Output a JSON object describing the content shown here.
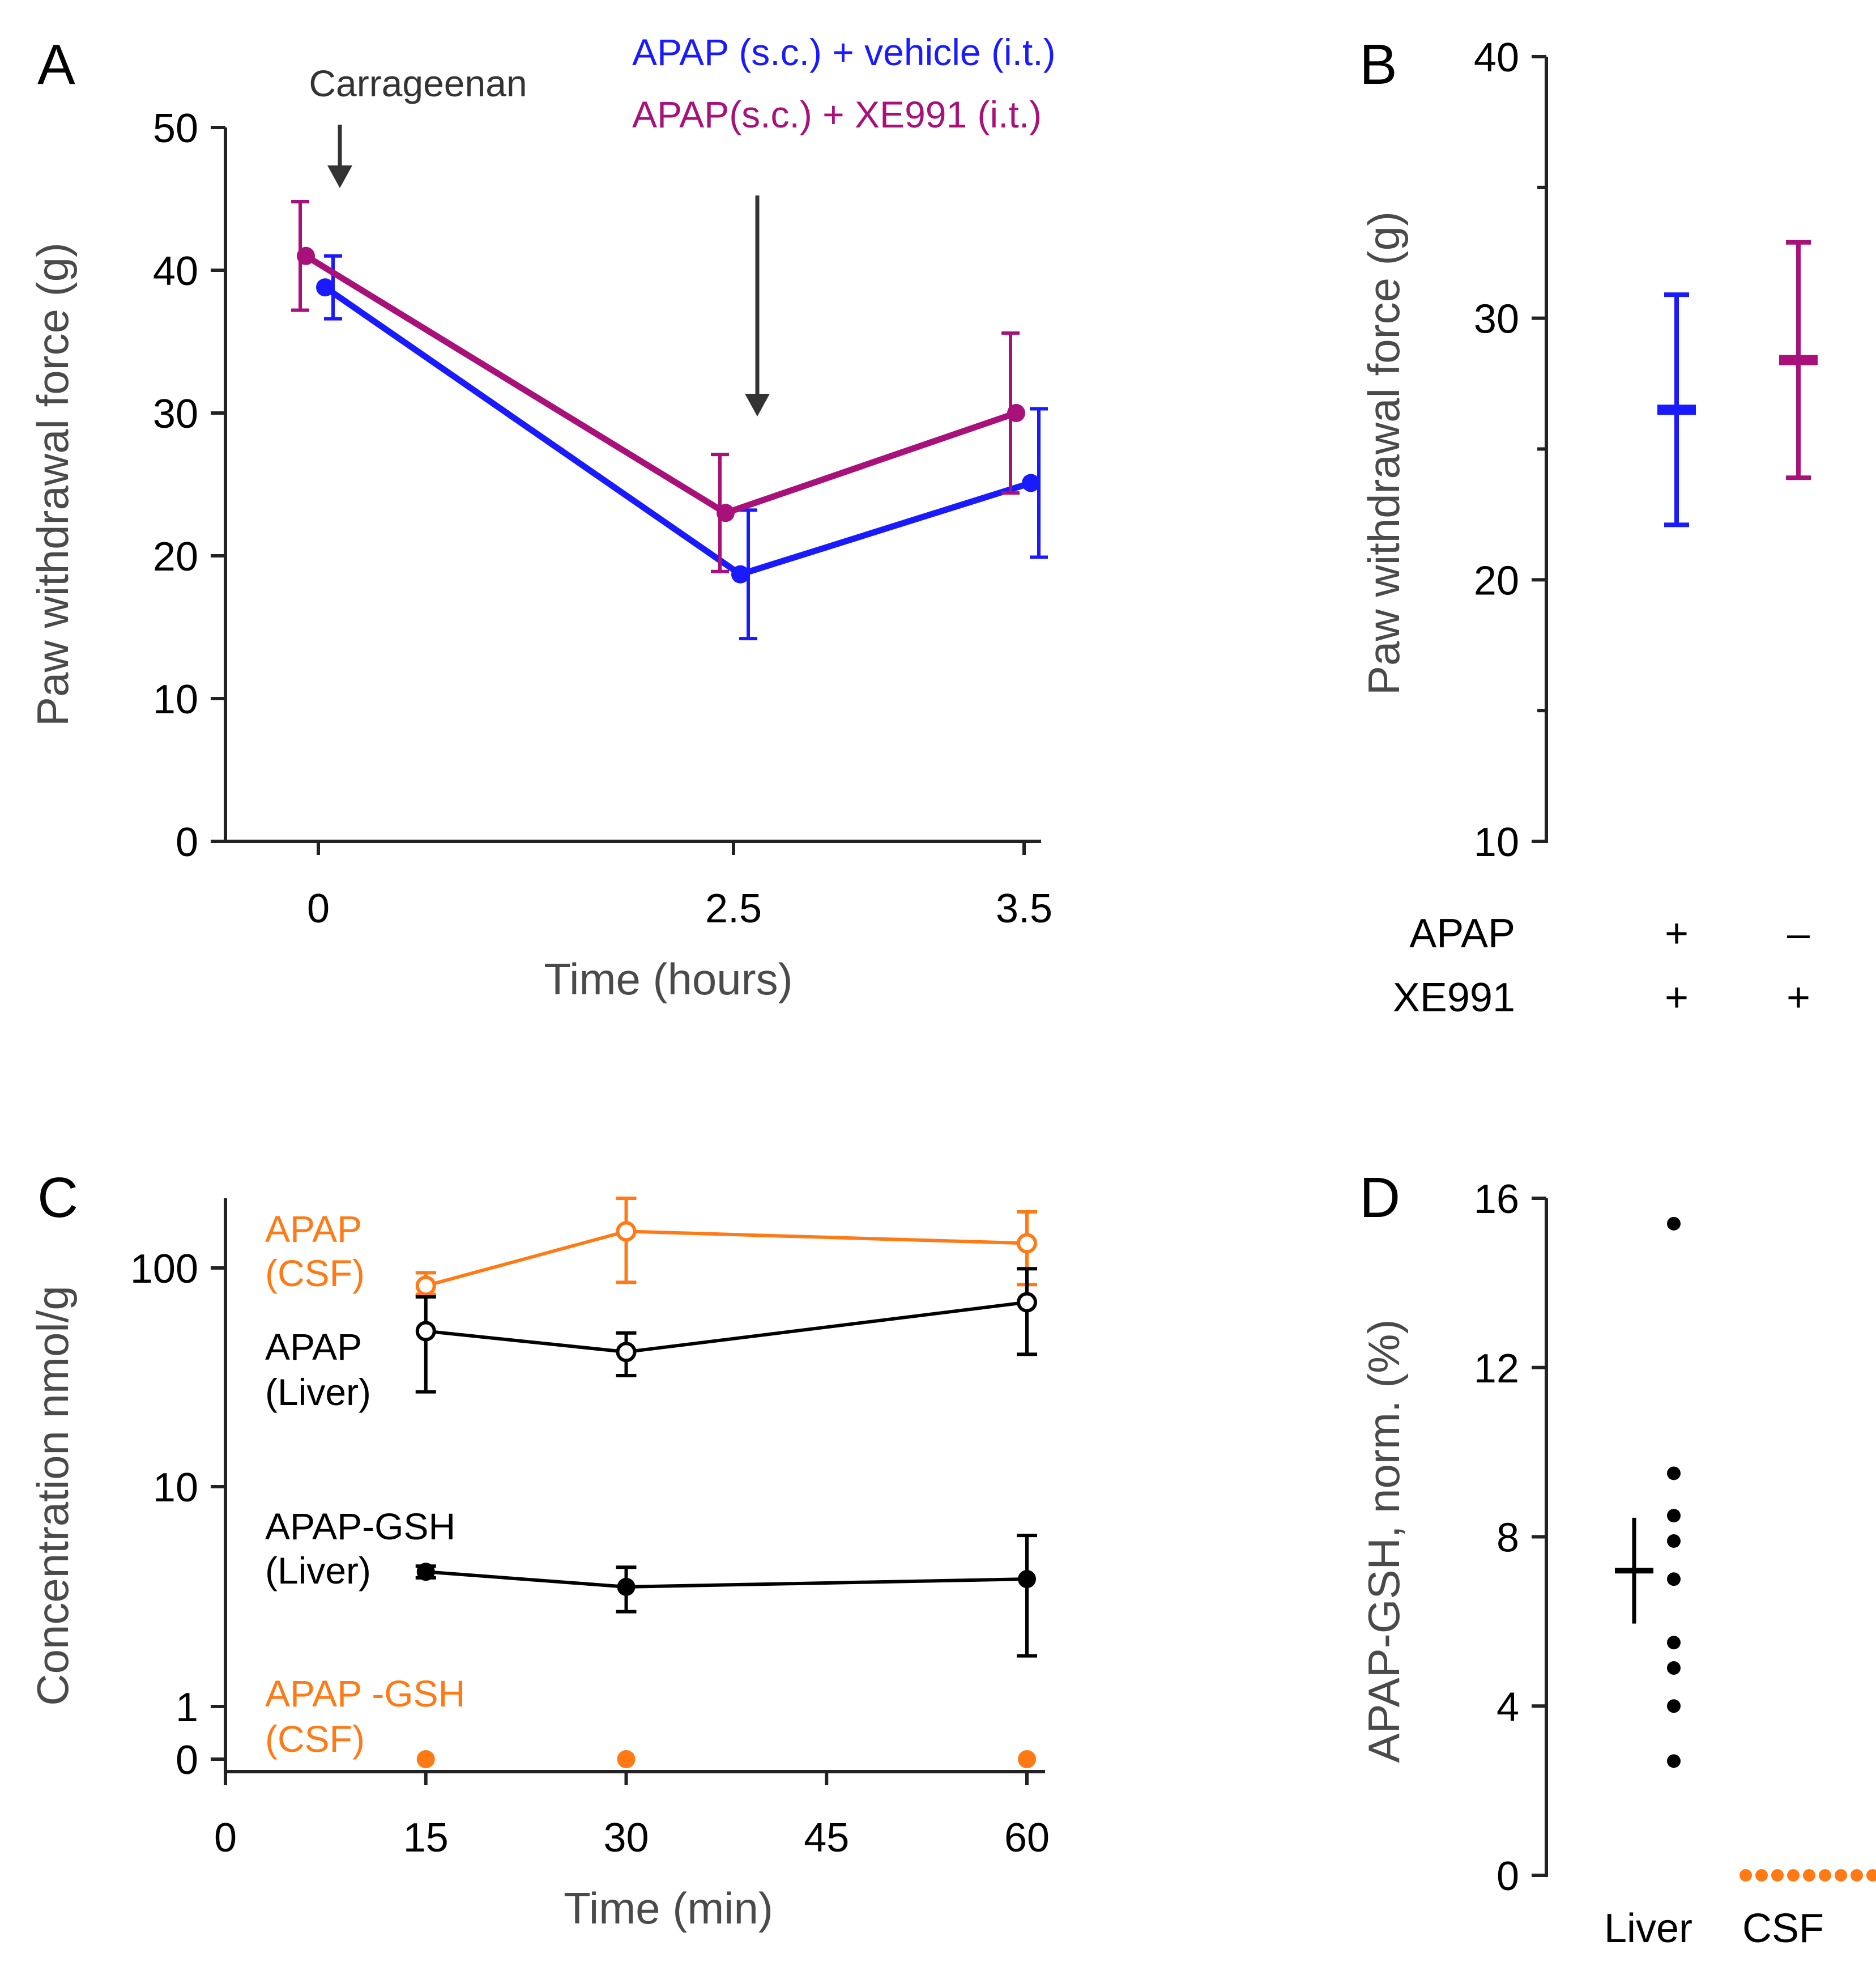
{
  "colors": {
    "blue": "#1a1aff",
    "magenta": "#a8117a",
    "orange": "#ff7a14",
    "black": "#000000",
    "gray": "#3a3a3a"
  },
  "chart_data": [
    {
      "panel": "A",
      "type": "line",
      "x_tick_labels": [
        "0",
        "2.5",
        "3.5"
      ],
      "y_ticks": [
        0,
        10,
        20,
        30,
        40,
        50
      ],
      "ylim": [
        0,
        50
      ],
      "xlabel": "Time (hours)",
      "ylabel": "Paw withdrawal force (g)",
      "annotation": "Carrageenan",
      "series": [
        {
          "name": "APAP (s.c.) + vehicle (i.t.)",
          "color": "blue",
          "x": [
            0,
            2.5,
            3.5
          ],
          "y": [
            38.8,
            18.7,
            25.1
          ],
          "err_low": [
            2.2,
            4.5,
            5.2
          ],
          "err_high": [
            2.2,
            4.5,
            5.2
          ]
        },
        {
          "name": "APAP(s.c.) + XE991 (i.t.)",
          "color": "magenta",
          "x": [
            0,
            2.5,
            3.5
          ],
          "y": [
            41.0,
            23.0,
            30.0
          ],
          "err_low": [
            3.8,
            4.1,
            5.6
          ],
          "err_high": [
            3.8,
            4.1,
            5.6
          ]
        }
      ]
    },
    {
      "panel": "B",
      "type": "scatter",
      "y_ticks": [
        10,
        20,
        30,
        40
      ],
      "ylim": [
        10,
        40
      ],
      "ylabel": "Paw withdrawal force (g)",
      "row_labels": [
        "APAP",
        "XE991"
      ],
      "columns": [
        {
          "apap": "+",
          "xe991": "+",
          "color": "blue",
          "mean": 26.5,
          "err": 4.4
        },
        {
          "apap": "–",
          "xe991": "+",
          "color": "magenta",
          "mean": 28.4,
          "err": 4.5
        }
      ]
    },
    {
      "panel": "C",
      "type": "line",
      "x_ticks": [
        0,
        15,
        30,
        45,
        60
      ],
      "y_tick_labels": [
        "100",
        "10",
        "1",
        "0"
      ],
      "yscale": "log",
      "xlabel": "Time (min)",
      "ylabel": "Concentration nmol/g",
      "series": [
        {
          "name": "APAP",
          "sub": "(CSF)",
          "color": "orange",
          "marker": "open",
          "x": [
            15,
            30,
            60
          ],
          "y": [
            82,
            145,
            128
          ],
          "err_low": [
            7,
            60,
            45
          ],
          "err_high": [
            12,
            60,
            50
          ]
        },
        {
          "name": "APAP",
          "sub": "(Liver)",
          "color": "black",
          "marker": "open",
          "x": [
            15,
            30,
            60
          ],
          "y": [
            51,
            41,
            69
          ],
          "err_low": [
            24,
            9,
            29
          ],
          "err_high": [
            22,
            9,
            29
          ]
        },
        {
          "name": "APAP-GSH",
          "sub": "(Liver)",
          "color": "black",
          "marker": "filled",
          "x": [
            15,
            30,
            60
          ],
          "y": [
            4.1,
            3.5,
            3.8
          ],
          "err_low": [
            0.25,
            0.8,
            2.1
          ],
          "err_high": [
            0.25,
            0.8,
            2.2
          ]
        },
        {
          "name": "APAP -GSH",
          "sub": "(CSF)",
          "color": "orange",
          "marker": "filled",
          "x": [
            15,
            30,
            60
          ],
          "y": [
            0,
            0,
            0
          ]
        }
      ]
    },
    {
      "panel": "D",
      "type": "scatter",
      "y_ticks": [
        0,
        4,
        8,
        12,
        16
      ],
      "ylim": [
        0,
        16
      ],
      "ylabel": "APAP-GSH, norm. (%)",
      "categories": [
        "Liver",
        "CSF"
      ],
      "liver_points": [
        15.4,
        9.5,
        8.5,
        7.9,
        7.0,
        5.5,
        4.9,
        4.0,
        2.7
      ],
      "liver_mean": 7.2,
      "liver_err": 1.25,
      "csf_points": [
        0,
        0,
        0,
        0,
        0,
        0,
        0,
        0,
        0
      ]
    }
  ]
}
